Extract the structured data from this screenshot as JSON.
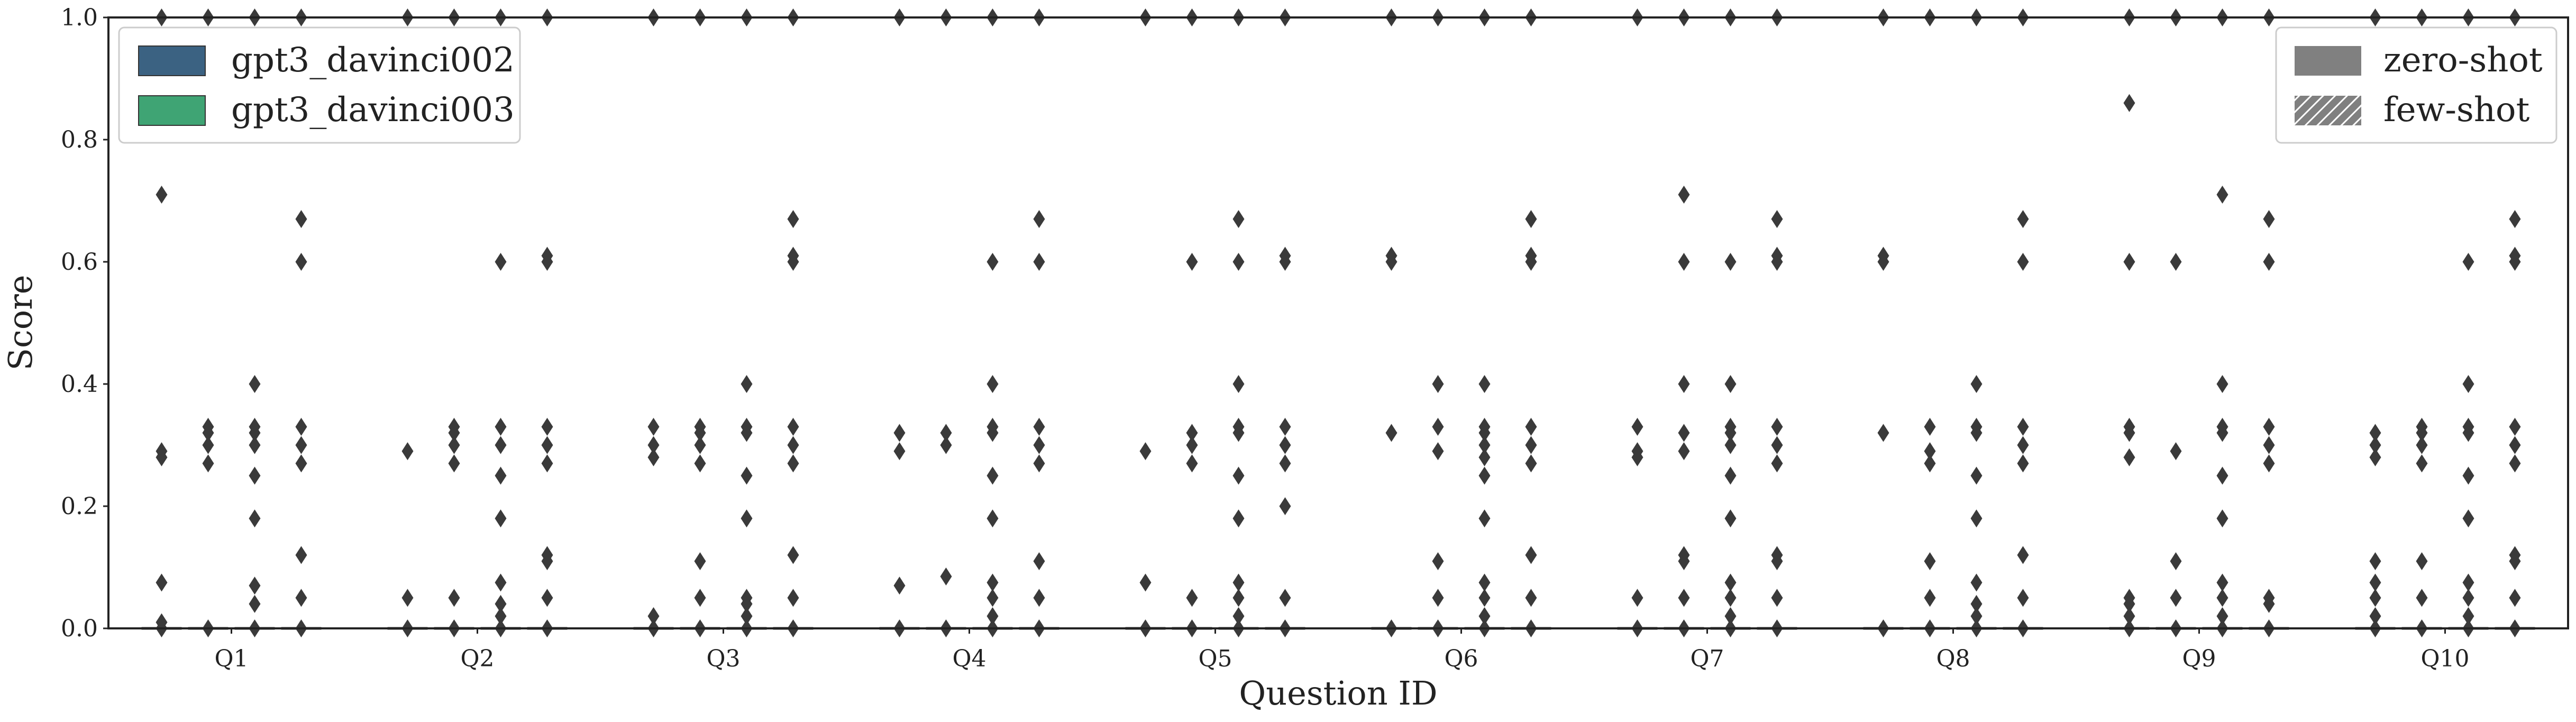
{
  "chart_data": {
    "type": "boxplot",
    "xlabel": "Question ID",
    "ylabel": "Score",
    "ylim": [
      0,
      1.0
    ],
    "yticks": [
      "0.0",
      "0.2",
      "0.4",
      "0.6",
      "0.8",
      "1.0"
    ],
    "categories": [
      "Q1",
      "Q2",
      "Q3",
      "Q4",
      "Q5",
      "Q6",
      "Q7",
      "Q8",
      "Q9",
      "Q10"
    ],
    "legend_models": [
      {
        "name": "gpt3_davinci002",
        "color": "#3b6282"
      },
      {
        "name": "gpt3_davinci003",
        "color": "#3fa474"
      }
    ],
    "legend_styles": [
      {
        "name": "zero-shot",
        "fill": "solid"
      },
      {
        "name": "few-shot",
        "fill": "hatched"
      }
    ],
    "median_line_value": 0.0,
    "groups_per_category": [
      "gpt3_davinci002 zero-shot",
      "gpt3_davinci003 zero-shot",
      "gpt3_davinci002 few-shot",
      "gpt3_davinci003 few-shot"
    ],
    "outliers": [
      [
        [
          0.0,
          0.01,
          0.075,
          0.28,
          0.29,
          0.71,
          1.0
        ],
        [
          0.0,
          0.27,
          0.3,
          0.32,
          0.33,
          1.0
        ],
        [
          0.0,
          0.04,
          0.07,
          0.18,
          0.25,
          0.3,
          0.32,
          0.33,
          0.4,
          1.0
        ],
        [
          0.0,
          0.05,
          0.12,
          0.27,
          0.3,
          0.33,
          0.6,
          0.67,
          1.0
        ]
      ],
      [
        [
          0.0,
          0.05,
          0.29,
          1.0
        ],
        [
          0.0,
          0.05,
          0.27,
          0.3,
          0.32,
          0.33,
          1.0
        ],
        [
          0.0,
          0.02,
          0.04,
          0.075,
          0.18,
          0.25,
          0.3,
          0.33,
          0.6,
          1.0
        ],
        [
          0.0,
          0.05,
          0.11,
          0.12,
          0.27,
          0.3,
          0.33,
          0.6,
          0.61,
          1.0
        ]
      ],
      [
        [
          0.0,
          0.02,
          0.28,
          0.3,
          0.33,
          1.0
        ],
        [
          0.0,
          0.05,
          0.11,
          0.27,
          0.3,
          0.32,
          0.33,
          1.0
        ],
        [
          0.0,
          0.02,
          0.04,
          0.05,
          0.18,
          0.25,
          0.32,
          0.33,
          0.4,
          1.0
        ],
        [
          0.0,
          0.05,
          0.12,
          0.27,
          0.3,
          0.33,
          0.6,
          0.61,
          0.67,
          1.0
        ]
      ],
      [
        [
          0.0,
          0.07,
          0.29,
          0.32,
          1.0
        ],
        [
          0.0,
          0.085,
          0.3,
          0.32,
          1.0
        ],
        [
          0.0,
          0.02,
          0.05,
          0.075,
          0.18,
          0.25,
          0.32,
          0.33,
          0.4,
          0.6,
          1.0
        ],
        [
          0.0,
          0.05,
          0.11,
          0.27,
          0.3,
          0.33,
          0.6,
          0.67,
          1.0
        ]
      ],
      [
        [
          0.0,
          0.075,
          0.29,
          1.0
        ],
        [
          0.0,
          0.05,
          0.27,
          0.3,
          0.32,
          0.6,
          1.0
        ],
        [
          0.0,
          0.02,
          0.05,
          0.075,
          0.18,
          0.25,
          0.32,
          0.33,
          0.4,
          0.6,
          0.67,
          1.0
        ],
        [
          0.0,
          0.05,
          0.2,
          0.27,
          0.3,
          0.33,
          0.6,
          0.61,
          1.0
        ]
      ],
      [
        [
          0.0,
          0.32,
          0.6,
          0.61,
          1.0
        ],
        [
          0.0,
          0.05,
          0.11,
          0.29,
          0.33,
          0.4,
          1.0
        ],
        [
          0.0,
          0.02,
          0.05,
          0.075,
          0.18,
          0.25,
          0.28,
          0.3,
          0.32,
          0.33,
          0.4,
          1.0
        ],
        [
          0.0,
          0.05,
          0.12,
          0.27,
          0.3,
          0.33,
          0.6,
          0.61,
          0.67,
          1.0
        ]
      ],
      [
        [
          0.0,
          0.05,
          0.28,
          0.29,
          0.33,
          1.0
        ],
        [
          0.0,
          0.05,
          0.11,
          0.12,
          0.29,
          0.32,
          0.4,
          0.6,
          0.71,
          1.0
        ],
        [
          0.0,
          0.02,
          0.05,
          0.075,
          0.18,
          0.25,
          0.3,
          0.32,
          0.33,
          0.4,
          0.6,
          1.0
        ],
        [
          0.0,
          0.05,
          0.11,
          0.12,
          0.27,
          0.3,
          0.33,
          0.6,
          0.61,
          0.67,
          1.0
        ]
      ],
      [
        [
          0.0,
          0.32,
          0.6,
          0.61,
          1.0
        ],
        [
          0.0,
          0.05,
          0.11,
          0.27,
          0.29,
          0.33,
          1.0
        ],
        [
          0.0,
          0.02,
          0.04,
          0.075,
          0.18,
          0.25,
          0.32,
          0.33,
          0.4,
          1.0
        ],
        [
          0.0,
          0.05,
          0.12,
          0.27,
          0.3,
          0.33,
          0.6,
          0.67,
          1.0
        ]
      ],
      [
        [
          0.0,
          0.02,
          0.04,
          0.05,
          0.28,
          0.32,
          0.33,
          0.6,
          0.86,
          1.0
        ],
        [
          0.0,
          0.05,
          0.11,
          0.29,
          0.6,
          1.0
        ],
        [
          0.0,
          0.02,
          0.05,
          0.075,
          0.18,
          0.25,
          0.32,
          0.33,
          0.4,
          0.71,
          1.0
        ],
        [
          0.0,
          0.04,
          0.05,
          0.27,
          0.3,
          0.33,
          0.6,
          0.67,
          1.0
        ]
      ],
      [
        [
          0.0,
          0.02,
          0.05,
          0.075,
          0.11,
          0.28,
          0.3,
          0.32,
          1.0
        ],
        [
          0.0,
          0.05,
          0.11,
          0.27,
          0.3,
          0.32,
          0.33,
          1.0
        ],
        [
          0.0,
          0.02,
          0.05,
          0.075,
          0.18,
          0.25,
          0.32,
          0.33,
          0.4,
          0.6,
          1.0
        ],
        [
          0.0,
          0.05,
          0.11,
          0.12,
          0.27,
          0.3,
          0.33,
          0.6,
          0.61,
          0.67,
          1.0
        ]
      ]
    ],
    "grid": false,
    "legend_placement": [
      "top-left",
      "top-right"
    ]
  }
}
